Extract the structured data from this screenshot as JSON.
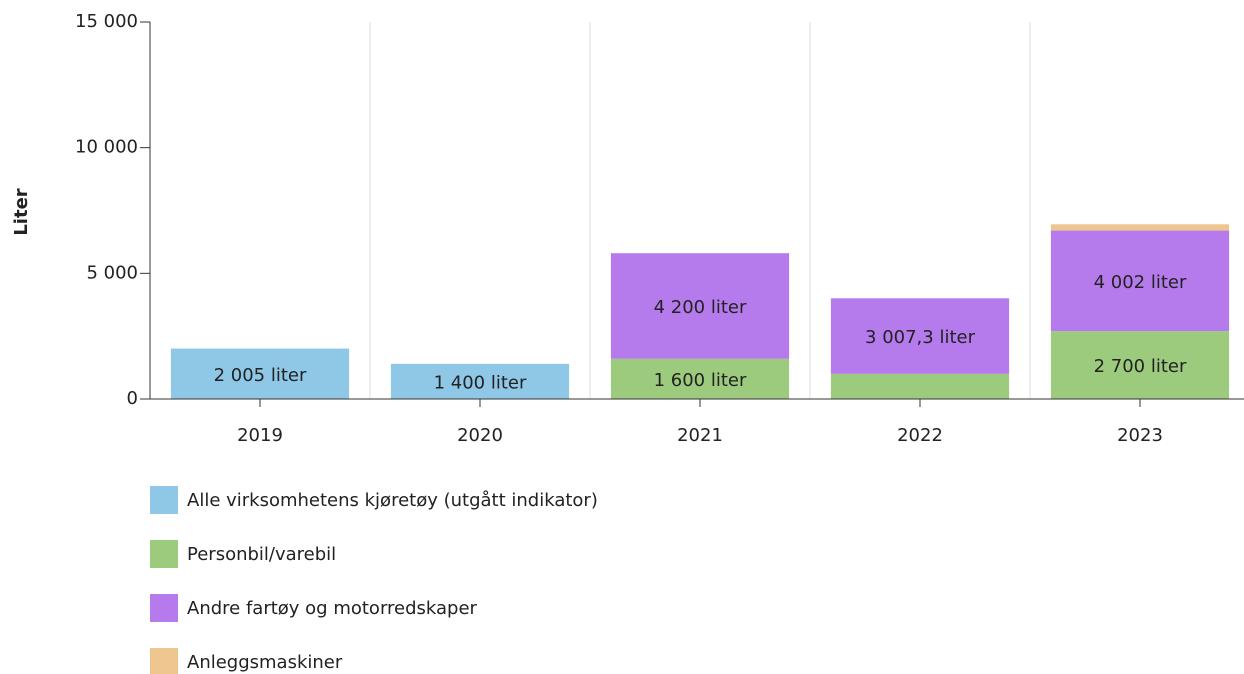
{
  "chart_data": {
    "type": "stacked_bar",
    "y_label": "Liter",
    "categories": [
      "2019",
      "2020",
      "2021",
      "2022",
      "2023"
    ],
    "series": [
      {
        "name": "Alle virksomhetens kjøretøy (utgått indikator)",
        "color": "#8ec8e6",
        "values": [
          2005,
          1400,
          null,
          null,
          null
        ],
        "value_labels": [
          "2 005 liter",
          "1 400 liter",
          null,
          null,
          null
        ]
      },
      {
        "name": "Personbil/varebil",
        "color": "#9dcb7d",
        "values": [
          null,
          null,
          1600,
          1000,
          2700
        ],
        "value_labels": [
          null,
          null,
          "1 600 liter",
          null,
          "2 700 liter"
        ]
      },
      {
        "name": "Andre fartøy og motorredskaper",
        "color": "#b57bec",
        "values": [
          null,
          null,
          4200,
          3007.3,
          4002
        ],
        "value_labels": [
          null,
          null,
          "4 200 liter",
          "3 007,3 liter",
          "4 002 liter"
        ]
      },
      {
        "name": "Anleggsmaskiner",
        "color": "#efc590",
        "values": [
          null,
          null,
          null,
          null,
          250
        ],
        "value_labels": [
          null,
          null,
          null,
          null,
          null
        ]
      }
    ],
    "ylim": [
      0,
      15000
    ],
    "yticks": [
      0,
      {
        "value": 5000,
        "label": "5 000"
      },
      {
        "value": 10000,
        "label": "10 000"
      },
      {
        "value": 15000,
        "label": "15 000"
      }
    ],
    "grid": "x"
  }
}
